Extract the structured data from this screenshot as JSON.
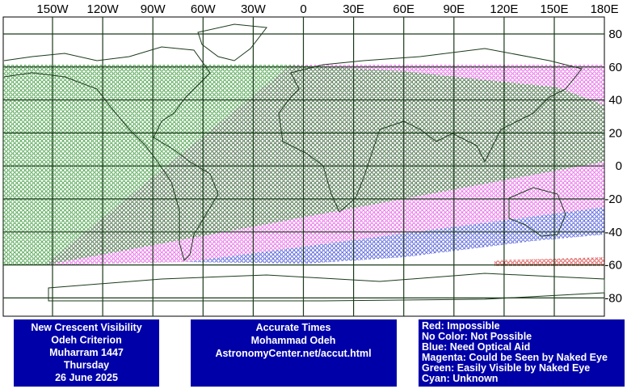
{
  "map": {
    "longitude_labels": [
      "150W",
      "120W",
      "90W",
      "60W",
      "30W",
      "0",
      "30E",
      "60E",
      "90E",
      "120E",
      "150E",
      "180E"
    ],
    "latitude_labels": [
      80,
      60,
      40,
      20,
      0,
      -20,
      -40,
      -60,
      -80
    ]
  },
  "info_box": {
    "lines": [
      "New Crescent Visibility",
      "Odeh Criterion",
      "Muharram 1447",
      "Thursday",
      "26 June 2025"
    ]
  },
  "credit_box": {
    "lines": [
      "Accurate Times",
      "Mohammad Odeh",
      "AstronomyCenter.net/accut.html"
    ]
  },
  "legend_box": {
    "lines": [
      "Red: Impossible",
      "No Color: Not Possible",
      "Blue: Need Optical Aid",
      "Magenta: Could be Seen by Naked Eye",
      "Green: Easily Visible by Naked Eye",
      "Cyan: Unknown"
    ]
  }
}
